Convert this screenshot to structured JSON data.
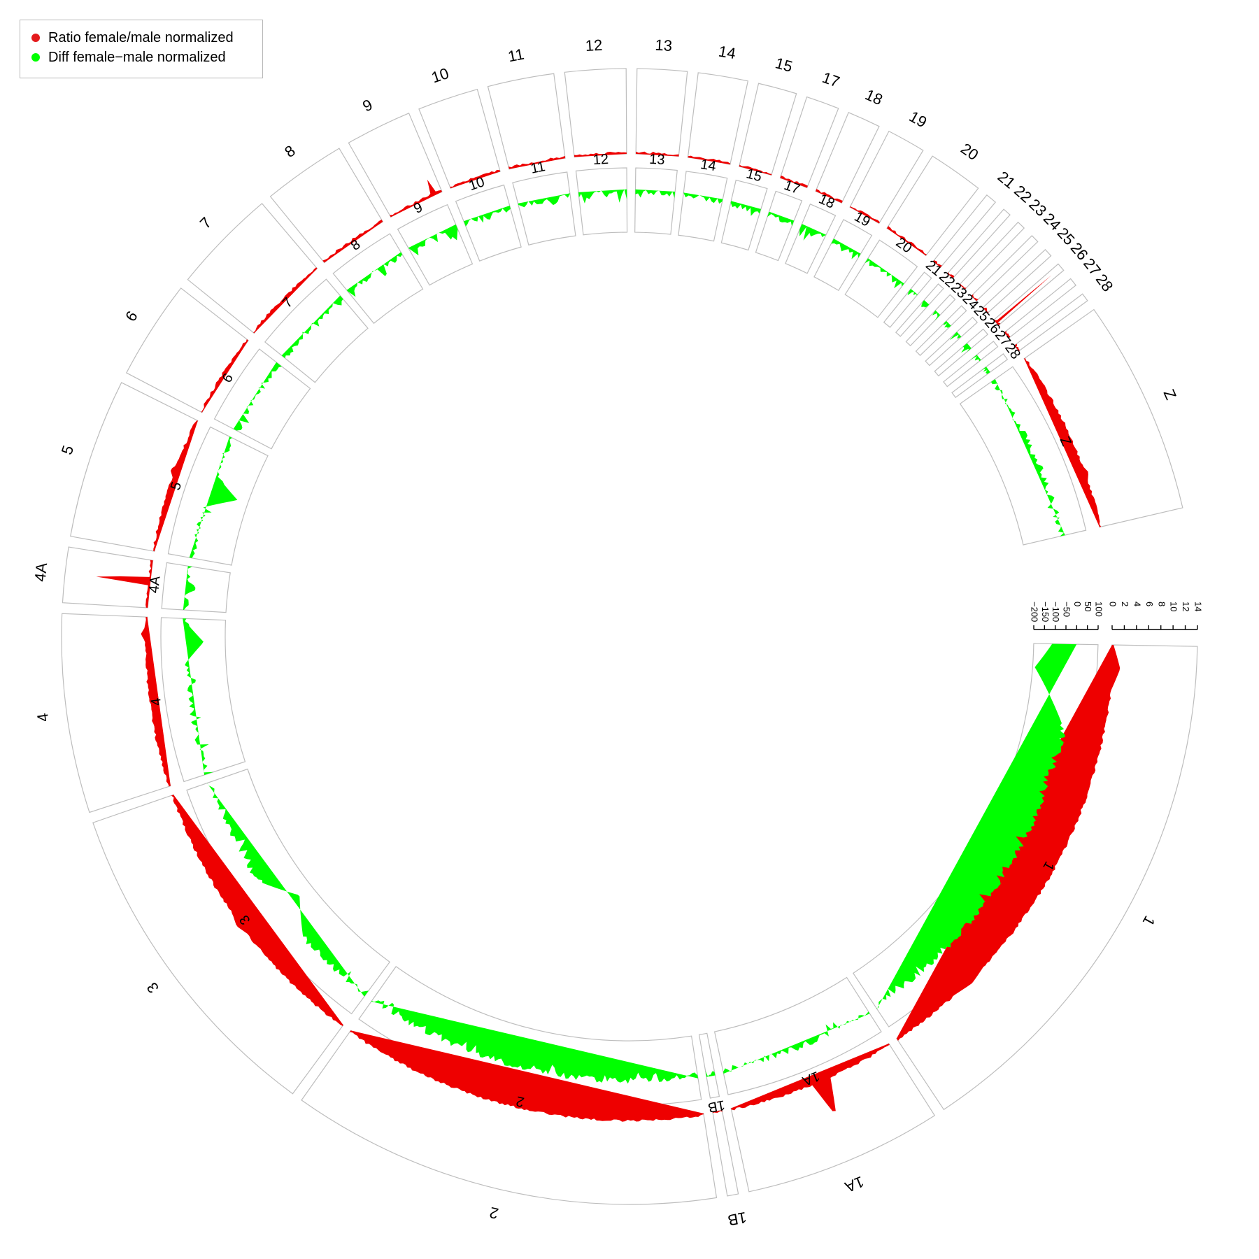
{
  "legend": {
    "items": [
      {
        "label": "Ratio female/male normalized",
        "color": "#e41a1c"
      },
      {
        "label": "Diff female−male normalized",
        "color": "#00ff00"
      }
    ]
  },
  "colors": {
    "ratio": "#ee0000",
    "diff": "#00ff00",
    "frame": "#bdbdbd"
  },
  "chart_data": {
    "type": "area",
    "layout": "circular",
    "chromosomes": [
      {
        "name": "1",
        "span": 98
      },
      {
        "name": "1A",
        "span": 36
      },
      {
        "name": "1B",
        "span": 2
      },
      {
        "name": "2",
        "span": 78
      },
      {
        "name": "3",
        "span": 61
      },
      {
        "name": "4",
        "span": 36
      },
      {
        "name": "4A",
        "span": 10
      },
      {
        "name": "5",
        "span": 29
      },
      {
        "name": "6",
        "span": 18
      },
      {
        "name": "7",
        "span": 19
      },
      {
        "name": "8",
        "span": 15
      },
      {
        "name": "9",
        "span": 12
      },
      {
        "name": "10",
        "span": 11
      },
      {
        "name": "11",
        "span": 12
      },
      {
        "name": "12",
        "span": 11
      },
      {
        "name": "13",
        "span": 9
      },
      {
        "name": "14",
        "span": 9
      },
      {
        "name": "15",
        "span": 7
      },
      {
        "name": "17",
        "span": 6
      },
      {
        "name": "18",
        "span": 6
      },
      {
        "name": "19",
        "span": 7
      },
      {
        "name": "20",
        "span": 10
      },
      {
        "name": "21",
        "span": 2
      },
      {
        "name": "22",
        "span": 1.5
      },
      {
        "name": "23",
        "span": 1.5
      },
      {
        "name": "24",
        "span": 1.5
      },
      {
        "name": "25",
        "span": 1.5
      },
      {
        "name": "26",
        "span": 1.5
      },
      {
        "name": "27",
        "span": 1.5
      },
      {
        "name": "28",
        "span": 1.5
      },
      {
        "name": "Z",
        "span": 39
      }
    ],
    "series": [
      {
        "name": "Ratio female/male normalized",
        "track": "outer",
        "ylim": [
          0,
          14
        ],
        "ticks": [
          0,
          2,
          4,
          6,
          8,
          10,
          12,
          14
        ],
        "peaks": [
          {
            "chr": "1",
            "pos": 0.05,
            "value": 1.5
          },
          {
            "chr": "1",
            "pos": 0.8,
            "value": 0.8
          },
          {
            "chr": "1A",
            "pos": 0.45,
            "value": 6.5
          },
          {
            "chr": "4A",
            "pos": 0.55,
            "value": 13.5
          },
          {
            "chr": "26",
            "pos": 0.5,
            "value": 12
          },
          {
            "chr": "9",
            "pos": 0.85,
            "value": 2.8
          },
          {
            "chr": "5",
            "pos": 0.6,
            "value": 1.0
          },
          {
            "chr": "4",
            "pos": 0.9,
            "value": 1.0
          },
          {
            "chr": "3",
            "pos": 0.5,
            "value": 0.9
          },
          {
            "chr": "Z",
            "pos": 0.7,
            "value": 0.8
          }
        ],
        "baseline_level": 0.3
      },
      {
        "name": "Diff female−male normalized",
        "track": "inner",
        "ylim": [
          -200,
          100
        ],
        "ticks": [
          -200,
          -150,
          -100,
          -50,
          0,
          50,
          100
        ],
        "peaks": [
          {
            "chr": "1",
            "pos": 0.06,
            "value": -190
          },
          {
            "chr": "5",
            "pos": 0.55,
            "value": -150
          },
          {
            "chr": "3",
            "pos": 0.45,
            "value": -130
          },
          {
            "chr": "4",
            "pos": 0.85,
            "value": -100
          },
          {
            "chr": "4A",
            "pos": 0.5,
            "value": -60
          },
          {
            "chr": "9",
            "pos": 0.9,
            "value": -70
          },
          {
            "chr": "19",
            "pos": 0.4,
            "value": -40
          },
          {
            "chr": "26",
            "pos": 0.5,
            "value": -50
          },
          {
            "chr": "12",
            "pos": 0.2,
            "value": -40
          }
        ],
        "baseline_level": -15
      }
    ]
  }
}
